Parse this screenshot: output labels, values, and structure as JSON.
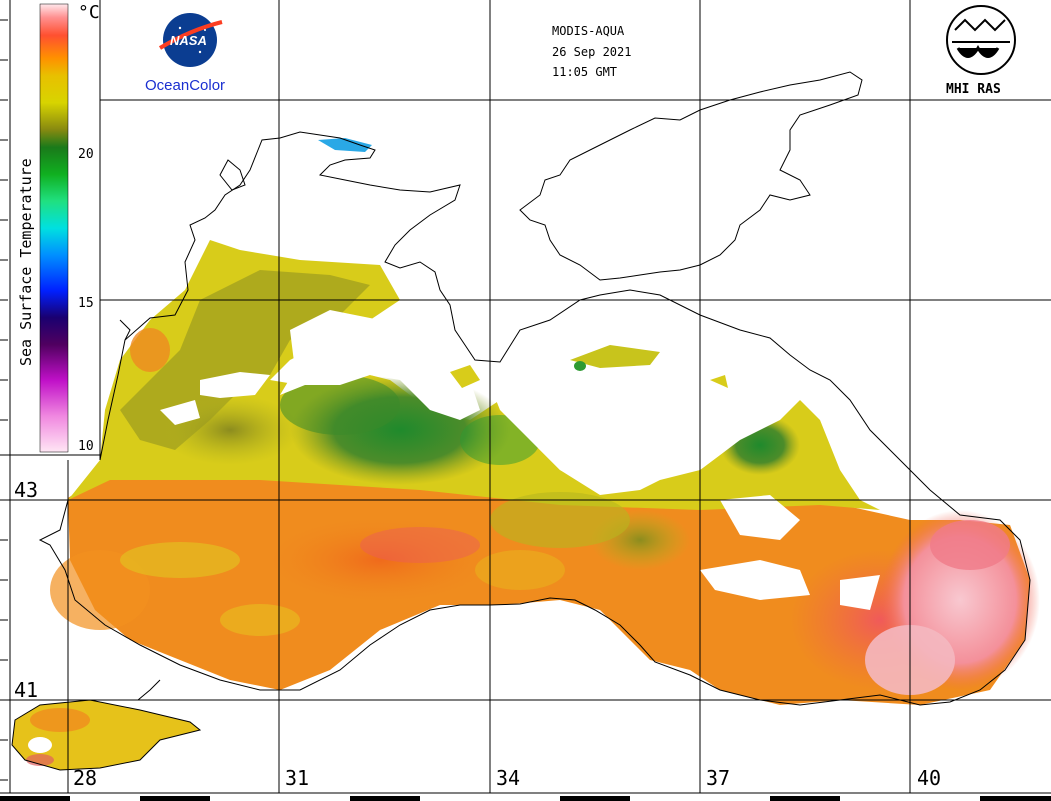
{
  "header": {
    "sensor": "MODIS-AQUA",
    "date": "26 Sep 2021",
    "time": "11:05 GMT"
  },
  "logos": {
    "nasa_text": "NASA",
    "oceancolor_text": "OceanColor",
    "mhi_text": "MHI RAS"
  },
  "legend": {
    "title": "Sea Surface Temperature",
    "unit": "°C",
    "ticks": [
      "20",
      "15",
      "10"
    ],
    "color_stops": [
      "#ffffff",
      "#ff9dd0",
      "#e030c0",
      "#400060",
      "#0000a0",
      "#0060ff",
      "#00d0ff",
      "#30e0a0",
      "#10a020",
      "#309030",
      "#b0c000",
      "#e8e000",
      "#ffa000",
      "#ff5000",
      "#ff8080",
      "#ffe0e0"
    ]
  },
  "axes": {
    "longitude_labels": [
      "28",
      "31",
      "34",
      "37",
      "40"
    ],
    "latitude_labels": [
      "43",
      "41"
    ]
  },
  "colors": {
    "warm_orange": "#f28a1c",
    "yellow": "#dcd51a",
    "olive": "#a5a41e",
    "green": "#2e8c2a",
    "pink": "#f5a0a8",
    "land": "#ffffff",
    "coast": "#000000"
  }
}
